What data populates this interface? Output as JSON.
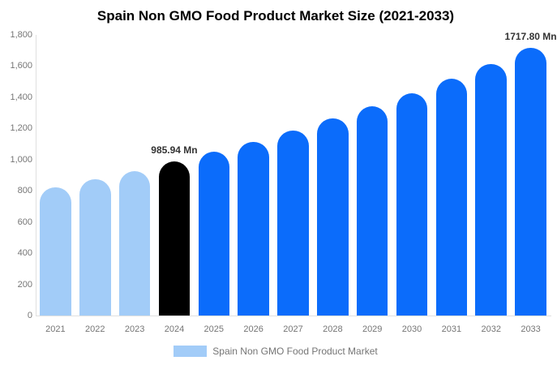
{
  "title": "Spain Non GMO Food Product Market Size (2021-2033)",
  "legend": {
    "label": "Spain Non GMO Food Product Market",
    "swatch_color": "#A2CCF8"
  },
  "colors": {
    "historical_bar": "#A2CCF8",
    "base_year_bar": "#000000",
    "forecast_bar": "#0B6CFB",
    "axis_line": "#e0e0e0",
    "tick_text": "#757575",
    "data_label_text": "#333333",
    "title_text": "#000000"
  },
  "chart_data": {
    "type": "bar",
    "title": "Spain Non GMO Food Product Market Size (2021-2033)",
    "xlabel": "",
    "ylabel": "",
    "unit": "Mn",
    "categories": [
      "2021",
      "2022",
      "2023",
      "2024",
      "2025",
      "2026",
      "2027",
      "2028",
      "2029",
      "2030",
      "2031",
      "2032",
      "2033"
    ],
    "values": [
      819.4,
      871.5,
      927.0,
      985.94,
      1048.7,
      1115.4,
      1186.4,
      1261.9,
      1342.2,
      1427.6,
      1518.4,
      1615.0,
      1717.8
    ],
    "bar_colors": [
      "#A2CCF8",
      "#A2CCF8",
      "#A2CCF8",
      "#000000",
      "#0B6CFB",
      "#0B6CFB",
      "#0B6CFB",
      "#0B6CFB",
      "#0B6CFB",
      "#0B6CFB",
      "#0B6CFB",
      "#0B6CFB",
      "#0B6CFB"
    ],
    "data_labels": [
      {
        "category": "2024",
        "text": "985.94 Mn"
      },
      {
        "category": "2033",
        "text": "1717.80 Mn"
      }
    ],
    "ylim": [
      0,
      1800
    ],
    "ytick_step": 200,
    "ytick_labels": [
      "0",
      "200",
      "400",
      "600",
      "800",
      "1,000",
      "1,200",
      "1,400",
      "1,600",
      "1,800"
    ],
    "grid": "off",
    "legend_position": "bottom-center",
    "legend_entries": [
      "Spain Non GMO Food Product Market"
    ]
  }
}
